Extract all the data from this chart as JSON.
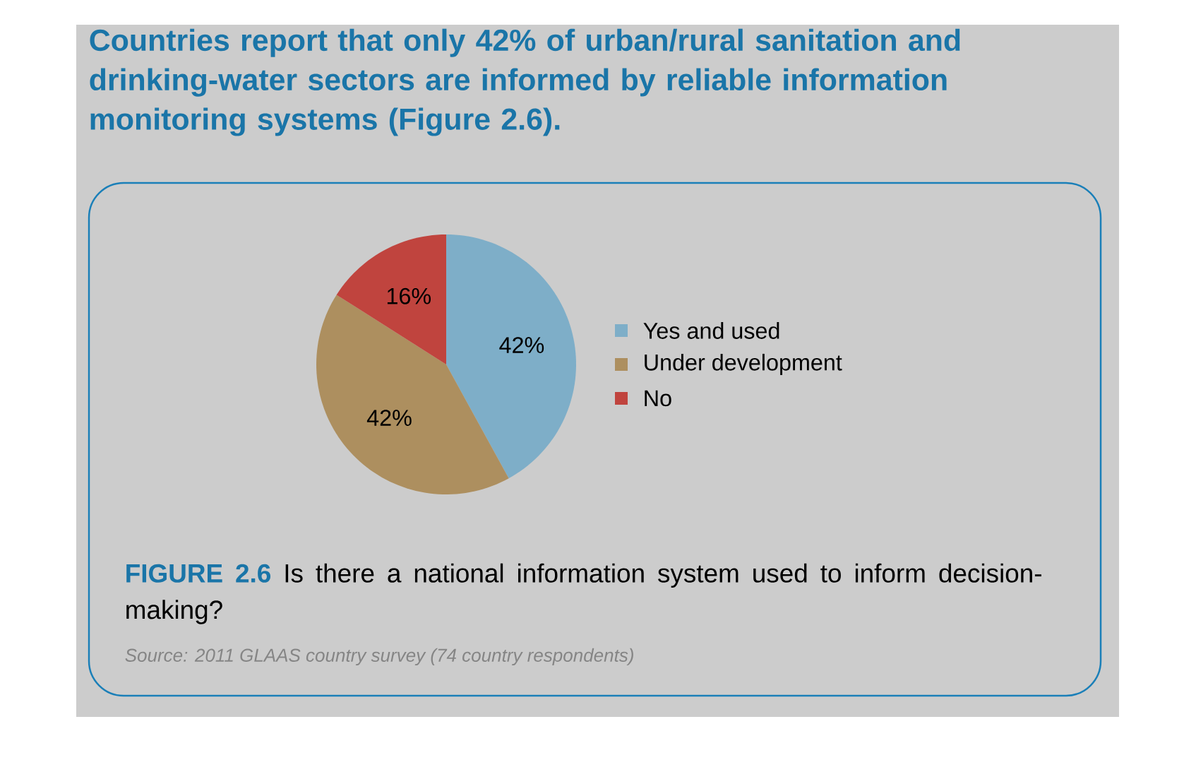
{
  "chart_data": {
    "type": "pie",
    "title": "Countries report that only 42% of urban/rural sanitation and drinking-water sectors are informed by reliable information monitoring systems (Figure 2.6).",
    "categories": [
      "Yes and used",
      "Under development",
      "No"
    ],
    "values": [
      42,
      42,
      16
    ],
    "value_labels": [
      "42%",
      "42%",
      "16%"
    ],
    "colors": [
      "#7eaec8",
      "#ad8f5f",
      "#c0443e"
    ],
    "legend": "right",
    "annotations": [
      "FIGURE 2.6",
      "Is there a national information system used to inform decision-making?",
      "Source: 2011 GLAAS country survey (74 country respondents)"
    ]
  }
}
